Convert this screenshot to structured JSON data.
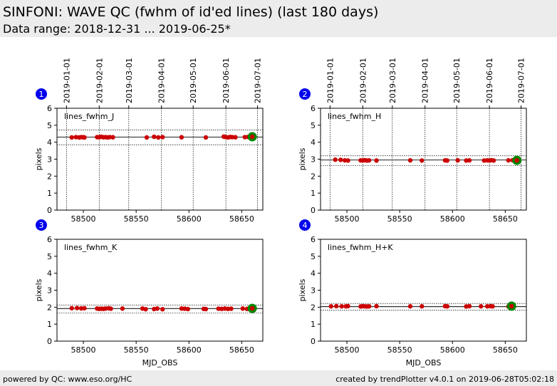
{
  "header": {
    "title": "SINFONI: WAVE QC (fwhm of id'ed lines) (last 180 days)",
    "subtitle": "Data range: 2018-12-31 ... 2019-06-25*"
  },
  "footer": {
    "left": "powered by QC: www.eso.org/HC",
    "right": "created by trendPlotter v4.0.1 on 2019-06-28T05:02:18"
  },
  "colors": {
    "point": "#cc0000",
    "last_point": "#008800",
    "badge": "#0000ee",
    "header_bg": "#ececec"
  },
  "chart_data": [
    {
      "type": "scatter",
      "badge": "1",
      "label": "lines_fwhm_J",
      "xlabel": "",
      "ylabel": "pixels",
      "xlim": [
        58475,
        58670
      ],
      "ylim": [
        0,
        6
      ],
      "xticks": [
        58500,
        58550,
        58600,
        58650
      ],
      "yticks": [
        0,
        1,
        2,
        3,
        4,
        5,
        6
      ],
      "date_ticks": [
        {
          "label": "2019-01-01",
          "mjd": 58484
        },
        {
          "label": "2019-02-01",
          "mjd": 58515
        },
        {
          "label": "2019-03-01",
          "mjd": 58543
        },
        {
          "label": "2019-04-01",
          "mjd": 58574
        },
        {
          "label": "2019-05-01",
          "mjd": 58604
        },
        {
          "label": "2019-06-01",
          "mjd": 58635
        },
        {
          "label": "2019-07-01",
          "mjd": 58665
        }
      ],
      "mean": 4.3,
      "band": [
        3.85,
        4.72
      ],
      "x": [
        58489,
        58493,
        58496,
        58498,
        58500,
        58501,
        58513,
        58515,
        58517,
        58519,
        58521,
        58523,
        58525,
        58528,
        58560,
        58567,
        58571,
        58575,
        58593,
        58616,
        58633,
        58635,
        58637,
        58639,
        58641,
        58644,
        58653,
        58656
      ],
      "y": [
        4.28,
        4.3,
        4.28,
        4.3,
        4.29,
        4.28,
        4.3,
        4.29,
        4.32,
        4.29,
        4.3,
        4.28,
        4.3,
        4.29,
        4.28,
        4.32,
        4.28,
        4.3,
        4.29,
        4.28,
        4.33,
        4.3,
        4.28,
        4.31,
        4.3,
        4.29,
        4.3,
        4.31
      ],
      "last": {
        "x": 58660,
        "y": 4.32
      }
    },
    {
      "type": "scatter",
      "badge": "2",
      "label": "lines_fwhm_H",
      "xlabel": "",
      "ylabel": "pixels",
      "xlim": [
        58475,
        58670
      ],
      "ylim": [
        0,
        6
      ],
      "xticks": [
        58500,
        58550,
        58600,
        58650
      ],
      "yticks": [
        0,
        1,
        2,
        3,
        4,
        5,
        6
      ],
      "date_ticks": [
        {
          "label": "2019-01-01",
          "mjd": 58484
        },
        {
          "label": "2019-02-01",
          "mjd": 58515
        },
        {
          "label": "2019-03-01",
          "mjd": 58543
        },
        {
          "label": "2019-04-01",
          "mjd": 58574
        },
        {
          "label": "2019-05-01",
          "mjd": 58604
        },
        {
          "label": "2019-06-01",
          "mjd": 58635
        },
        {
          "label": "2019-07-01",
          "mjd": 58665
        }
      ],
      "mean": 2.95,
      "band": [
        2.63,
        3.2
      ],
      "x": [
        58489,
        58494,
        58498,
        58501,
        58513,
        58515,
        58517,
        58519,
        58521,
        58528,
        58560,
        58571,
        58593,
        58595,
        58605,
        58613,
        58616,
        58630,
        58633,
        58635,
        58637,
        58639,
        58653,
        58657
      ],
      "y": [
        2.97,
        2.96,
        2.93,
        2.92,
        2.93,
        2.92,
        2.94,
        2.92,
        2.93,
        2.92,
        2.93,
        2.92,
        2.93,
        2.92,
        2.93,
        2.92,
        2.93,
        2.92,
        2.93,
        2.92,
        2.94,
        2.92,
        2.93,
        2.94
      ],
      "last": {
        "x": 58661,
        "y": 2.93
      }
    },
    {
      "type": "scatter",
      "badge": "3",
      "label": "lines_fwhm_K",
      "xlabel": "MJD_OBS",
      "ylabel": "pixels",
      "xlim": [
        58475,
        58670
      ],
      "ylim": [
        0,
        6
      ],
      "xticks": [
        58500,
        58550,
        58600,
        58650
      ],
      "yticks": [
        0,
        1,
        2,
        3,
        4,
        5,
        6
      ],
      "date_ticks": [],
      "mean": 1.92,
      "band": [
        1.65,
        2.13
      ],
      "x": [
        58489,
        58494,
        58498,
        58501,
        58513,
        58515,
        58517,
        58519,
        58521,
        58524,
        58526,
        58537,
        58556,
        58559,
        58567,
        58570,
        58575,
        58593,
        58596,
        58599,
        58614,
        58616,
        58628,
        58631,
        58634,
        58637,
        58640,
        58651,
        58655
      ],
      "y": [
        1.94,
        1.95,
        1.93,
        1.94,
        1.92,
        1.9,
        1.91,
        1.9,
        1.92,
        1.94,
        1.91,
        1.92,
        1.92,
        1.88,
        1.89,
        1.92,
        1.88,
        1.92,
        1.91,
        1.89,
        1.9,
        1.89,
        1.91,
        1.9,
        1.92,
        1.9,
        1.91,
        1.92,
        1.9
      ],
      "last": {
        "x": 58660,
        "y": 1.93
      }
    },
    {
      "type": "scatter",
      "badge": "4",
      "label": "lines_fwhm_H+K",
      "xlabel": "MJD_OBS",
      "ylabel": "pixels",
      "xlim": [
        58475,
        58670
      ],
      "ylim": [
        0,
        6
      ],
      "xticks": [
        58500,
        58550,
        58600,
        58650
      ],
      "yticks": [
        0,
        1,
        2,
        3,
        4,
        5,
        6
      ],
      "date_ticks": [],
      "mean": 2.03,
      "band": [
        1.82,
        2.22
      ],
      "x": [
        58485,
        58490,
        58495,
        58499,
        58501,
        58513,
        58515,
        58517,
        58519,
        58521,
        58528,
        58560,
        58571,
        58593,
        58595,
        58613,
        58616,
        58627,
        58633,
        58636,
        58638,
        58653
      ],
      "y": [
        2.05,
        2.06,
        2.05,
        2.05,
        2.06,
        2.04,
        2.06,
        2.05,
        2.04,
        2.05,
        2.06,
        2.05,
        2.05,
        2.06,
        2.05,
        2.04,
        2.06,
        2.05,
        2.05,
        2.06,
        2.05,
        2.04
      ],
      "last": {
        "x": 58656,
        "y": 2.06
      }
    }
  ]
}
